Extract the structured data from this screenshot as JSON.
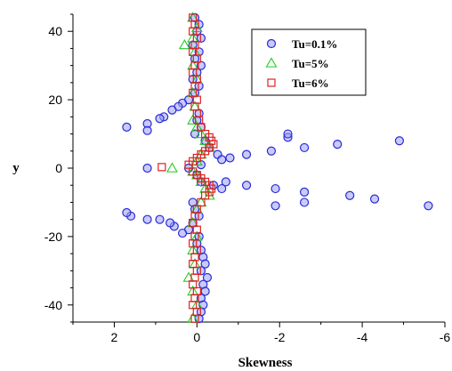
{
  "chart_data": {
    "type": "scatter",
    "xlabel": "Skewness",
    "ylabel": "y",
    "xlim": [
      3,
      -6
    ],
    "ylim": [
      -45,
      45
    ],
    "x_ticks": [
      2,
      0,
      -2,
      -4,
      -6
    ],
    "x_tick_labels": [
      "2",
      "0",
      "-2",
      "-4",
      "-6"
    ],
    "y_ticks": [
      40,
      20,
      0,
      -20,
      -40
    ],
    "y_tick_labels": [
      "40",
      "20",
      "0",
      "-20",
      "-40"
    ],
    "grid": false,
    "legend_position": "top-right",
    "series": [
      {
        "name": "Tu=0.1%",
        "marker": "circle",
        "color": "#2a2ad8",
        "points": [
          [
            0.05,
            44
          ],
          [
            -0.05,
            42
          ],
          [
            0.0,
            40
          ],
          [
            -0.1,
            38
          ],
          [
            0.1,
            36
          ],
          [
            -0.05,
            34
          ],
          [
            0.05,
            32
          ],
          [
            -0.1,
            30
          ],
          [
            0.0,
            28
          ],
          [
            0.1,
            26
          ],
          [
            -0.05,
            24
          ],
          [
            0.05,
            22
          ],
          [
            0.2,
            20
          ],
          [
            0.35,
            19
          ],
          [
            0.45,
            18
          ],
          [
            0.6,
            17
          ],
          [
            0.8,
            15
          ],
          [
            0.9,
            14.5
          ],
          [
            1.2,
            13
          ],
          [
            1.2,
            11
          ],
          [
            1.7,
            12
          ],
          [
            -0.05,
            16
          ],
          [
            0.0,
            14
          ],
          [
            -0.1,
            12
          ],
          [
            0.05,
            10
          ],
          [
            -0.2,
            8
          ],
          [
            -0.3,
            6
          ],
          [
            -0.5,
            4
          ],
          [
            -0.8,
            3
          ],
          [
            -0.6,
            2.5
          ],
          [
            -1.2,
            4
          ],
          [
            -1.8,
            5
          ],
          [
            -2.2,
            9
          ],
          [
            -2.2,
            10
          ],
          [
            -2.6,
            6
          ],
          [
            -3.4,
            7
          ],
          [
            -4.9,
            8
          ],
          [
            1.2,
            0
          ],
          [
            0.2,
            0
          ],
          [
            -0.1,
            1
          ],
          [
            0.0,
            -2
          ],
          [
            -0.1,
            -4
          ],
          [
            -0.4,
            -5
          ],
          [
            -0.6,
            -6
          ],
          [
            -0.7,
            -4
          ],
          [
            -1.2,
            -5
          ],
          [
            -1.9,
            -6
          ],
          [
            -1.9,
            -11
          ],
          [
            -2.6,
            -7
          ],
          [
            -2.6,
            -10
          ],
          [
            -3.7,
            -8
          ],
          [
            -4.3,
            -9
          ],
          [
            -5.6,
            -11
          ],
          [
            0.1,
            -10
          ],
          [
            0.05,
            -12
          ],
          [
            -0.05,
            -14
          ],
          [
            0.1,
            -16
          ],
          [
            0.2,
            -18
          ],
          [
            0.35,
            -19
          ],
          [
            0.55,
            -17
          ],
          [
            0.65,
            -16
          ],
          [
            0.9,
            -15
          ],
          [
            1.2,
            -15
          ],
          [
            1.6,
            -14
          ],
          [
            1.7,
            -13
          ],
          [
            -0.05,
            -20
          ],
          [
            0.0,
            -22
          ],
          [
            -0.1,
            -24
          ],
          [
            -0.15,
            -26
          ],
          [
            -0.2,
            -28
          ],
          [
            -0.1,
            -30
          ],
          [
            -0.25,
            -32
          ],
          [
            -0.15,
            -34
          ],
          [
            -0.2,
            -36
          ],
          [
            -0.1,
            -38
          ],
          [
            -0.15,
            -40
          ],
          [
            -0.1,
            -42
          ],
          [
            -0.05,
            -44
          ]
        ]
      },
      {
        "name": "Tu=5%",
        "marker": "triangle",
        "color": "#22cc22",
        "points": [
          [
            0.1,
            44
          ],
          [
            0.0,
            41
          ],
          [
            0.1,
            38
          ],
          [
            0.3,
            36
          ],
          [
            0.05,
            34
          ],
          [
            0.1,
            30
          ],
          [
            0.0,
            26
          ],
          [
            0.1,
            22
          ],
          [
            0.05,
            18
          ],
          [
            0.1,
            14
          ],
          [
            0.0,
            12
          ],
          [
            -0.1,
            10
          ],
          [
            -0.2,
            8
          ],
          [
            -0.3,
            6
          ],
          [
            -0.1,
            4
          ],
          [
            0.0,
            2
          ],
          [
            0.6,
            0
          ],
          [
            0.1,
            -1
          ],
          [
            0.0,
            -2
          ],
          [
            -0.1,
            -4
          ],
          [
            -0.2,
            -6
          ],
          [
            -0.3,
            -8
          ],
          [
            -0.1,
            -10
          ],
          [
            0.0,
            -12
          ],
          [
            0.1,
            -16
          ],
          [
            0.0,
            -20
          ],
          [
            0.1,
            -24
          ],
          [
            0.05,
            -28
          ],
          [
            0.2,
            -32
          ],
          [
            0.1,
            -36
          ],
          [
            0.0,
            -40
          ],
          [
            0.1,
            -44
          ]
        ]
      },
      {
        "name": "Tu=6%",
        "marker": "square",
        "color": "#dd2222",
        "points": [
          [
            0.1,
            44
          ],
          [
            0.05,
            42
          ],
          [
            0.1,
            40
          ],
          [
            0.0,
            38
          ],
          [
            0.05,
            36
          ],
          [
            0.1,
            34
          ],
          [
            0.0,
            32
          ],
          [
            0.05,
            30
          ],
          [
            0.1,
            28
          ],
          [
            0.0,
            26
          ],
          [
            0.05,
            24
          ],
          [
            0.1,
            22
          ],
          [
            0.0,
            20
          ],
          [
            0.05,
            18
          ],
          [
            0.0,
            16
          ],
          [
            -0.05,
            14
          ],
          [
            -0.1,
            12
          ],
          [
            -0.2,
            10
          ],
          [
            -0.3,
            9
          ],
          [
            -0.35,
            8
          ],
          [
            -0.4,
            7
          ],
          [
            -0.3,
            6
          ],
          [
            -0.2,
            5
          ],
          [
            -0.1,
            4
          ],
          [
            0.0,
            3
          ],
          [
            0.1,
            2
          ],
          [
            0.2,
            1
          ],
          [
            0.85,
            0.3
          ],
          [
            0.1,
            -1
          ],
          [
            0.0,
            -2
          ],
          [
            -0.1,
            -3
          ],
          [
            -0.2,
            -4
          ],
          [
            -0.3,
            -5
          ],
          [
            -0.35,
            -6
          ],
          [
            -0.3,
            -7
          ],
          [
            -0.2,
            -8
          ],
          [
            -0.1,
            -10
          ],
          [
            0.0,
            -12
          ],
          [
            0.05,
            -14
          ],
          [
            0.1,
            -16
          ],
          [
            0.0,
            -18
          ],
          [
            0.05,
            -20
          ],
          [
            0.1,
            -22
          ],
          [
            0.0,
            -24
          ],
          [
            0.05,
            -26
          ],
          [
            0.1,
            -28
          ],
          [
            0.0,
            -30
          ],
          [
            0.05,
            -32
          ],
          [
            0.1,
            -34
          ],
          [
            0.0,
            -36
          ],
          [
            0.05,
            -38
          ],
          [
            0.1,
            -40
          ],
          [
            0.0,
            -42
          ],
          [
            0.05,
            -44
          ]
        ]
      }
    ]
  }
}
